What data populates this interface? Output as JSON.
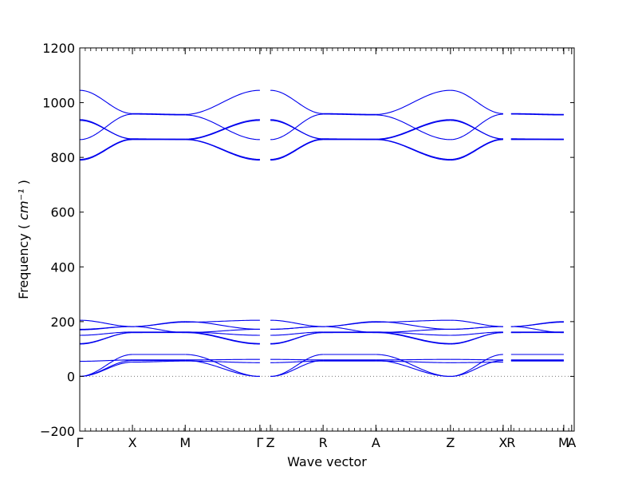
{
  "chart_data": {
    "type": "line",
    "title": "",
    "xlabel": "Wave vector",
    "ylabel": "Frequency",
    "ylabel_unit": "cm⁻¹",
    "ylim": [
      -200,
      1200
    ],
    "yticks": [
      -200,
      0,
      200,
      400,
      600,
      800,
      1000,
      1200
    ],
    "ytick_labels": [
      "−200",
      "0",
      "200",
      "400",
      "600",
      "800",
      "1000",
      "1200"
    ],
    "xlim": [
      0,
      6.25
    ],
    "x_ticks": [
      {
        "label": "Γ",
        "x": 0.0
      },
      {
        "label": "X",
        "x": 0.666
      },
      {
        "label": "M",
        "x": 1.333
      },
      {
        "label": "Γ",
        "x": 2.277
      },
      {
        "label": "Z",
        "x": 2.41
      },
      {
        "label": "R",
        "x": 3.076
      },
      {
        "label": "A",
        "x": 3.743
      },
      {
        "label": "Z",
        "x": 4.686
      },
      {
        "label": "X",
        "x": 5.352
      },
      {
        "label": "R",
        "x": 5.452
      },
      {
        "label": "M",
        "x": 6.118
      },
      {
        "label": "A",
        "x": 6.218
      }
    ],
    "line_color": "#0000ee",
    "zero_line": {
      "y": 0,
      "style": "dotted",
      "color": "#777777"
    },
    "segments": [
      {
        "name": "Γ-X",
        "x_range": [
          0.0,
          0.666
        ],
        "bands": [
          [
            0,
            80
          ],
          [
            0,
            58
          ],
          [
            0,
            52
          ],
          [
            55,
            60
          ],
          [
            118,
            160
          ],
          [
            120,
            160
          ],
          [
            150,
            162
          ],
          [
            170,
            182
          ],
          [
            172,
            182
          ],
          [
            205,
            182
          ],
          [
            790,
            865
          ],
          [
            793,
            867
          ],
          [
            865,
            958
          ],
          [
            935,
            868
          ],
          [
            938,
            867
          ],
          [
            1045,
            960
          ]
        ]
      },
      {
        "name": "X-M",
        "x_range": [
          0.666,
          1.333
        ],
        "bands": [
          [
            80,
            80
          ],
          [
            58,
            58
          ],
          [
            52,
            56
          ],
          [
            60,
            60
          ],
          [
            160,
            160
          ],
          [
            160,
            162
          ],
          [
            162,
            162
          ],
          [
            182,
            200
          ],
          [
            182,
            198
          ],
          [
            182,
            160
          ],
          [
            865,
            865
          ],
          [
            867,
            866
          ],
          [
            958,
            955
          ],
          [
            868,
            865
          ],
          [
            867,
            867
          ],
          [
            960,
            957
          ]
        ]
      },
      {
        "name": "M-Γ",
        "x_range": [
          1.333,
          2.277
        ],
        "bands": [
          [
            80,
            0
          ],
          [
            58,
            0
          ],
          [
            56,
            50
          ],
          [
            60,
            62
          ],
          [
            160,
            118
          ],
          [
            162,
            120
          ],
          [
            162,
            150
          ],
          [
            200,
            172
          ],
          [
            198,
            205
          ],
          [
            160,
            172
          ],
          [
            865,
            790
          ],
          [
            866,
            793
          ],
          [
            955,
            865
          ],
          [
            865,
            935
          ],
          [
            867,
            938
          ],
          [
            957,
            1045
          ]
        ]
      },
      {
        "name": "Z-R",
        "x_range": [
          2.41,
          3.076
        ],
        "bands": [
          [
            0,
            80
          ],
          [
            0,
            58
          ],
          [
            50,
            56
          ],
          [
            62,
            60
          ],
          [
            118,
            160
          ],
          [
            120,
            160
          ],
          [
            150,
            162
          ],
          [
            172,
            182
          ],
          [
            205,
            182
          ],
          [
            172,
            182
          ],
          [
            790,
            865
          ],
          [
            793,
            867
          ],
          [
            865,
            958
          ],
          [
            935,
            868
          ],
          [
            938,
            867
          ],
          [
            1045,
            960
          ]
        ]
      },
      {
        "name": "R-A",
        "x_range": [
          3.076,
          3.743
        ],
        "bands": [
          [
            80,
            80
          ],
          [
            58,
            58
          ],
          [
            56,
            56
          ],
          [
            60,
            60
          ],
          [
            160,
            160
          ],
          [
            160,
            162
          ],
          [
            162,
            162
          ],
          [
            182,
            200
          ],
          [
            182,
            198
          ],
          [
            182,
            160
          ],
          [
            865,
            865
          ],
          [
            867,
            866
          ],
          [
            958,
            955
          ],
          [
            868,
            865
          ],
          [
            867,
            867
          ],
          [
            960,
            957
          ]
        ]
      },
      {
        "name": "A-Z",
        "x_range": [
          3.743,
          4.686
        ],
        "bands": [
          [
            80,
            0
          ],
          [
            58,
            0
          ],
          [
            56,
            50
          ],
          [
            60,
            62
          ],
          [
            160,
            118
          ],
          [
            162,
            120
          ],
          [
            162,
            150
          ],
          [
            200,
            172
          ],
          [
            198,
            205
          ],
          [
            160,
            172
          ],
          [
            865,
            790
          ],
          [
            866,
            793
          ],
          [
            955,
            865
          ],
          [
            865,
            935
          ],
          [
            867,
            938
          ],
          [
            957,
            1045
          ]
        ]
      },
      {
        "name": "Z-X",
        "x_range": [
          4.686,
          5.352
        ],
        "bands": [
          [
            0,
            80
          ],
          [
            0,
            58
          ],
          [
            50,
            52
          ],
          [
            62,
            60
          ],
          [
            118,
            160
          ],
          [
            120,
            160
          ],
          [
            150,
            162
          ],
          [
            172,
            182
          ],
          [
            205,
            182
          ],
          [
            172,
            182
          ],
          [
            790,
            865
          ],
          [
            793,
            867
          ],
          [
            865,
            958
          ],
          [
            935,
            868
          ],
          [
            938,
            867
          ],
          [
            1045,
            960
          ]
        ]
      },
      {
        "name": "R-M",
        "x_range": [
          5.452,
          6.118
        ],
        "bands": [
          [
            80,
            80
          ],
          [
            58,
            58
          ],
          [
            56,
            56
          ],
          [
            60,
            60
          ],
          [
            160,
            160
          ],
          [
            160,
            162
          ],
          [
            162,
            162
          ],
          [
            182,
            200
          ],
          [
            182,
            198
          ],
          [
            182,
            160
          ],
          [
            865,
            865
          ],
          [
            867,
            866
          ],
          [
            958,
            955
          ],
          [
            868,
            865
          ],
          [
            867,
            867
          ],
          [
            960,
            957
          ]
        ]
      }
    ]
  }
}
